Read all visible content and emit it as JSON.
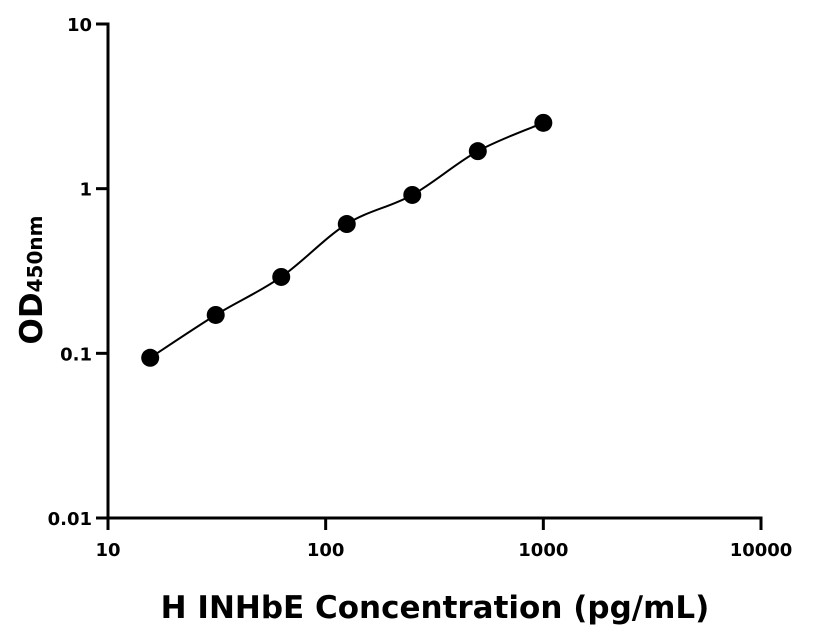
{
  "chart_data": {
    "type": "scatter",
    "x_label": "H INHbE Concentration (pg/mL)",
    "y_label": "OD",
    "y_label_subscript": "450nm",
    "x": [
      15.625,
      31.25,
      62.5,
      125,
      250,
      500,
      1000
    ],
    "series": [
      {
        "values": [
          0.094,
          0.171,
          0.291,
          0.61,
          0.916,
          1.69,
          2.51
        ],
        "color": "#000000"
      }
    ],
    "xscale": "log",
    "yscale": "log",
    "xlim": [
      10,
      10000
    ],
    "ylim": [
      0.01,
      10
    ],
    "xticks": [
      10,
      100,
      1000,
      10000
    ],
    "yticks": [
      0.01,
      0.1,
      1,
      10
    ],
    "fit_line": true
  }
}
